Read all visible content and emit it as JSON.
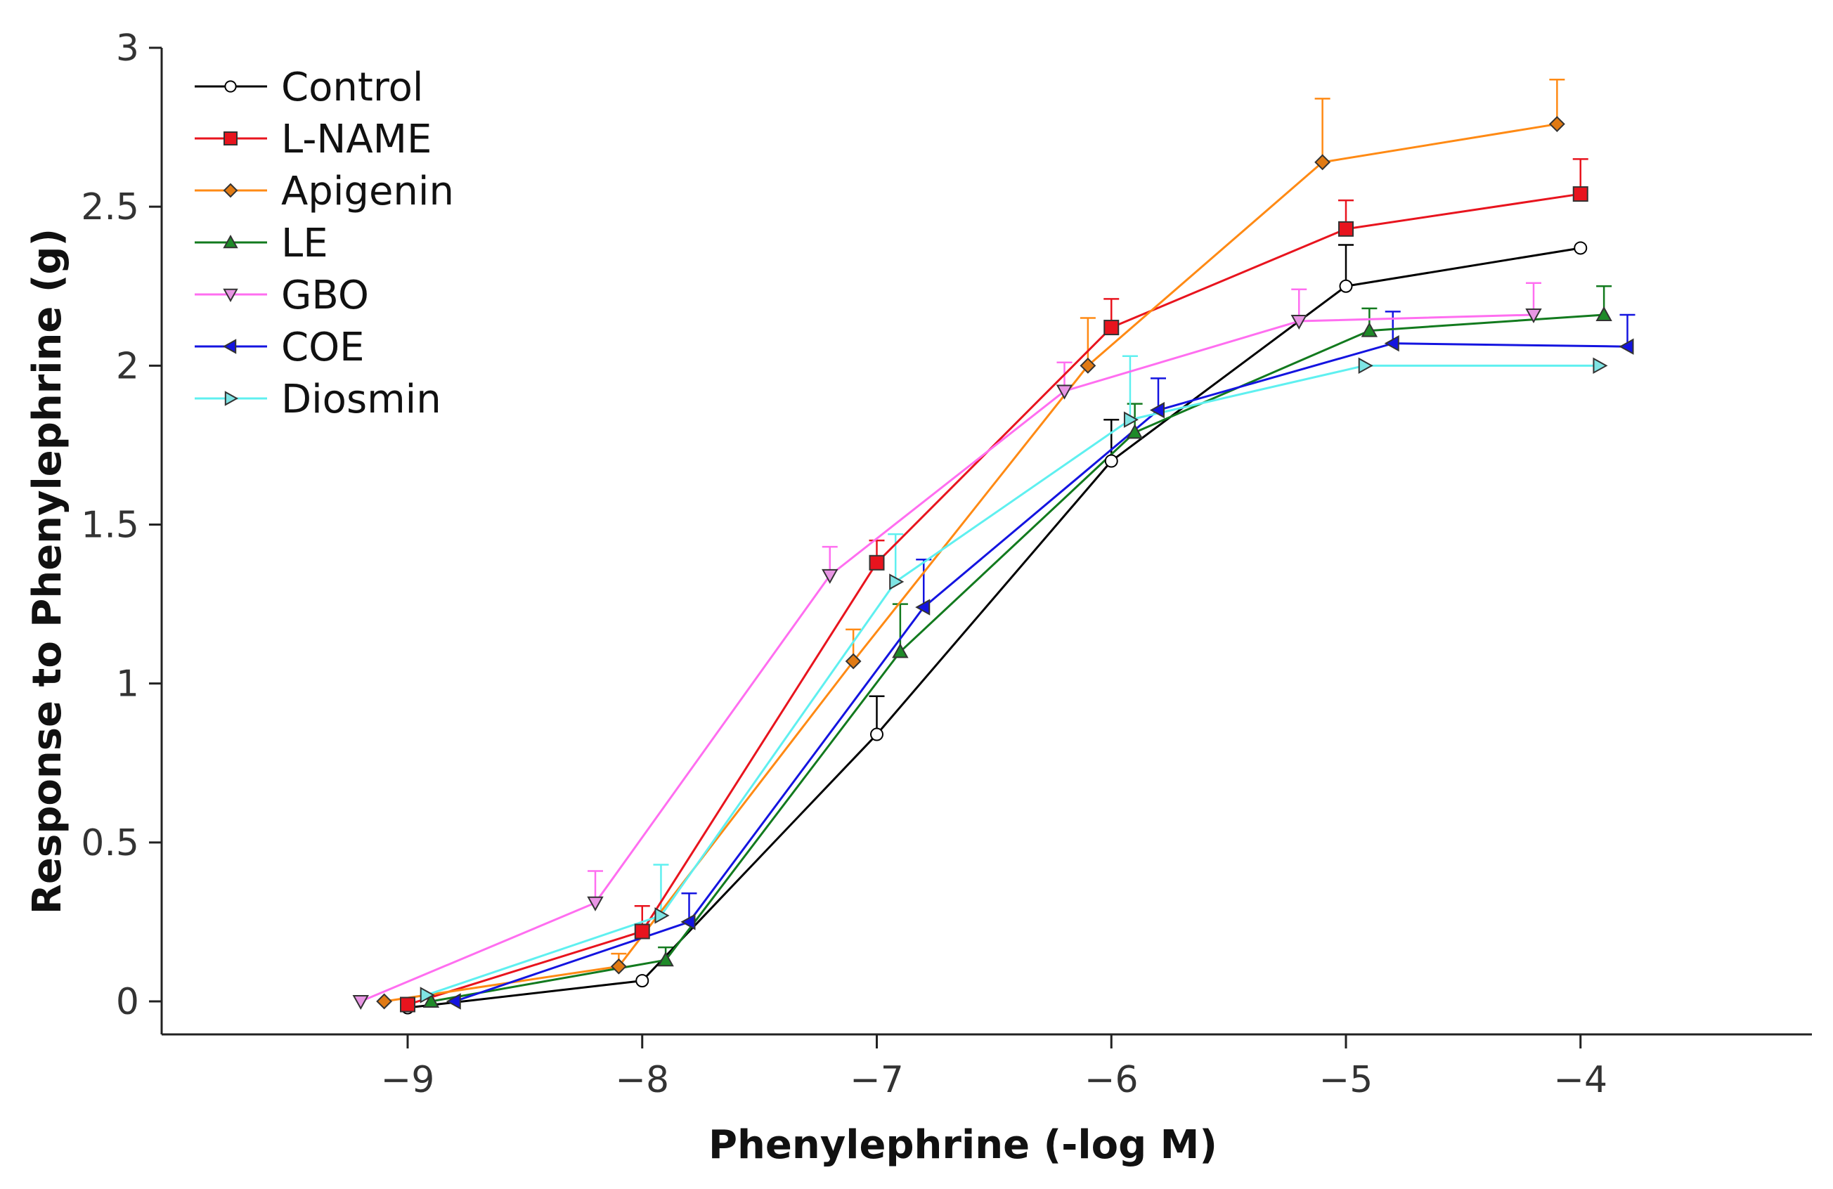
{
  "chart_data": {
    "type": "line",
    "title": "",
    "xlabel": "Phenylephrine (-log M)",
    "ylabel": "Response to Phenylephrine (g)",
    "xlim": [
      -10,
      -3
    ],
    "ylim": [
      -0.1,
      3
    ],
    "x_ticks": [
      -9,
      -8,
      -7,
      -6,
      -5,
      -4
    ],
    "x_tick_labels": [
      "−9",
      "−8",
      "−7",
      "−6",
      "−5",
      "−4"
    ],
    "y_ticks": [
      0,
      0.5,
      1,
      1.5,
      2,
      2.5,
      3
    ],
    "y_tick_labels": [
      "0",
      "0.5",
      "1",
      "1.5",
      "2",
      "2.5",
      "3"
    ],
    "legend_position": "top-left",
    "error_bars": "positive SEM",
    "series": [
      {
        "name": "Control",
        "color": "#000000",
        "marker": "circle",
        "marker_fill": "#ffffff",
        "x": [
          -9.0,
          -8.0,
          -7.0,
          -6.0,
          -5.0,
          -4.0
        ],
        "y": [
          -0.02,
          0.065,
          0.84,
          1.7,
          2.25,
          2.37
        ],
        "err": [
          0,
          0,
          0.12,
          0.13,
          0.13,
          0
        ]
      },
      {
        "name": "L-NAME",
        "color": "#e8141e",
        "marker": "square",
        "marker_fill": "#e8141e",
        "x": [
          -9.0,
          -8.0,
          -7.0,
          -6.0,
          -5.0,
          -4.0
        ],
        "y": [
          -0.01,
          0.22,
          1.38,
          2.12,
          2.43,
          2.54
        ],
        "err": [
          0,
          0.08,
          0.07,
          0.09,
          0.09,
          0.11
        ]
      },
      {
        "name": "Apigenin",
        "color": "#ff8a14",
        "marker": "diamond",
        "marker_fill": "#e07a14",
        "x": [
          -9.1,
          -8.1,
          -7.1,
          -6.1,
          -5.1,
          -4.1
        ],
        "y": [
          0.0,
          0.11,
          1.07,
          2.0,
          2.64,
          2.76
        ],
        "err": [
          0,
          0.04,
          0.1,
          0.15,
          0.2,
          0.14
        ]
      },
      {
        "name": "LE",
        "color": "#127a1e",
        "marker": "triangle-up",
        "marker_fill": "#1e8a28",
        "x": [
          -8.9,
          -7.9,
          -6.9,
          -5.9,
          -4.9,
          -3.9
        ],
        "y": [
          0.0,
          0.13,
          1.1,
          1.79,
          2.11,
          2.16
        ],
        "err": [
          0,
          0.04,
          0.15,
          0.09,
          0.07,
          0.09
        ]
      },
      {
        "name": "GBO",
        "color": "#ff6ef0",
        "marker": "triangle-down",
        "marker_fill": "#e896e4",
        "x": [
          -9.2,
          -8.2,
          -7.2,
          -6.2,
          -5.2,
          -4.2
        ],
        "y": [
          0.0,
          0.31,
          1.34,
          1.92,
          2.14,
          2.16
        ],
        "err": [
          0,
          0.1,
          0.09,
          0.09,
          0.1,
          0.1
        ]
      },
      {
        "name": "COE",
        "color": "#1414e0",
        "marker": "triangle-left",
        "marker_fill": "#1414e0",
        "x": [
          -8.8,
          -7.8,
          -6.8,
          -5.8,
          -4.8,
          -3.8
        ],
        "y": [
          0.0,
          0.25,
          1.24,
          1.86,
          2.07,
          2.06
        ],
        "err": [
          0,
          0.09,
          0.15,
          0.1,
          0.1,
          0.1
        ]
      },
      {
        "name": "Diosmin",
        "color": "#5ff0f0",
        "marker": "triangle-right",
        "marker_fill": "#7ee4e4",
        "x": [
          -8.92,
          -7.92,
          -6.92,
          -5.92,
          -4.92,
          -3.92
        ],
        "y": [
          0.02,
          0.27,
          1.32,
          1.83,
          2.0,
          2.0
        ],
        "err": [
          0,
          0.16,
          0.15,
          0.2,
          0,
          0
        ]
      }
    ]
  }
}
